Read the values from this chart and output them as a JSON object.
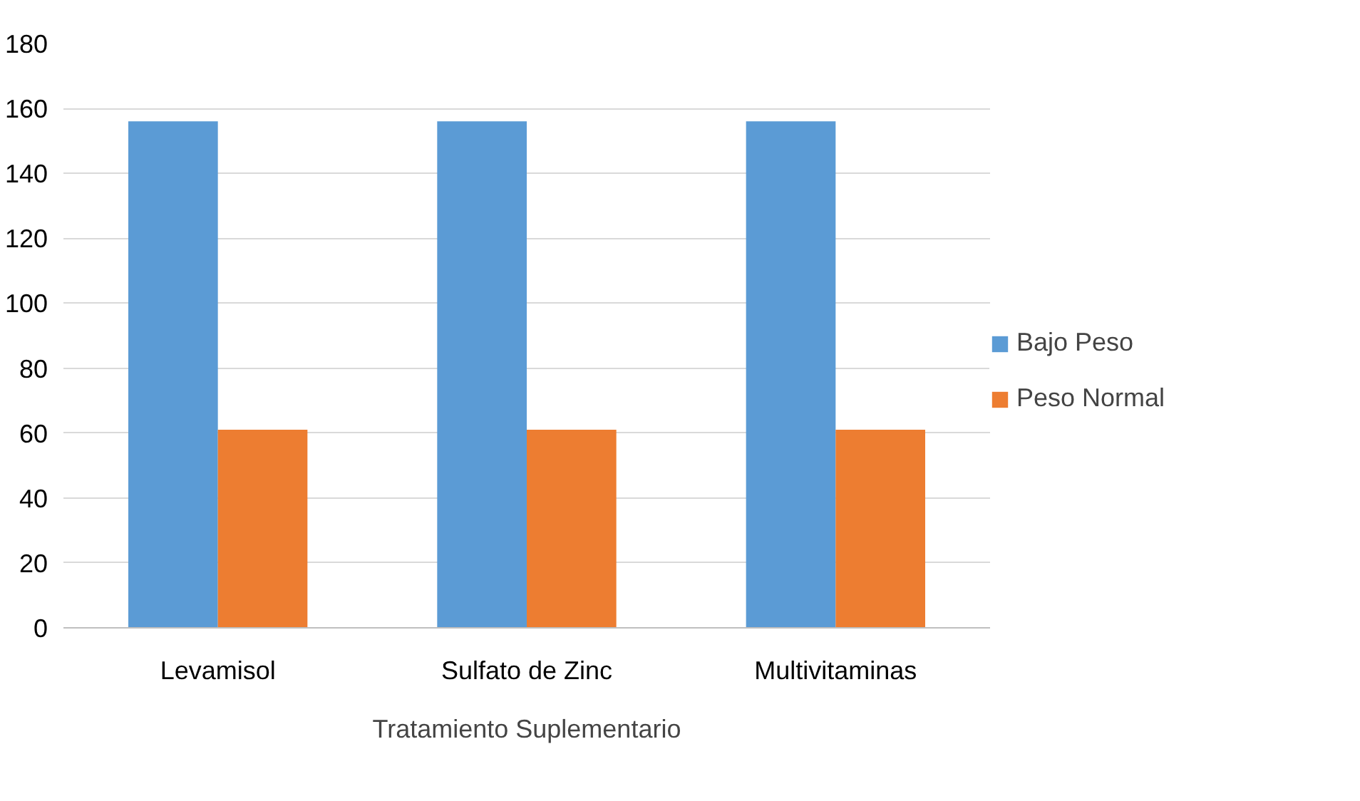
{
  "chart_data": {
    "type": "bar",
    "categories": [
      "Levamisol",
      "Sulfato de Zinc",
      "Multivitaminas"
    ],
    "xlabel": "Tratamiento Suplementario",
    "series": [
      {
        "name": "Bajo Peso",
        "color": "#5b9bd5",
        "values": [
          156,
          156,
          156
        ]
      },
      {
        "name": "Peso Normal",
        "color": "#ed7d31",
        "values": [
          61,
          61,
          61
        ]
      }
    ],
    "ylim": [
      0,
      180
    ],
    "yticks": [
      0,
      20,
      40,
      60,
      80,
      100,
      120,
      140,
      160,
      180
    ],
    "grid": "y",
    "legend": "right"
  }
}
